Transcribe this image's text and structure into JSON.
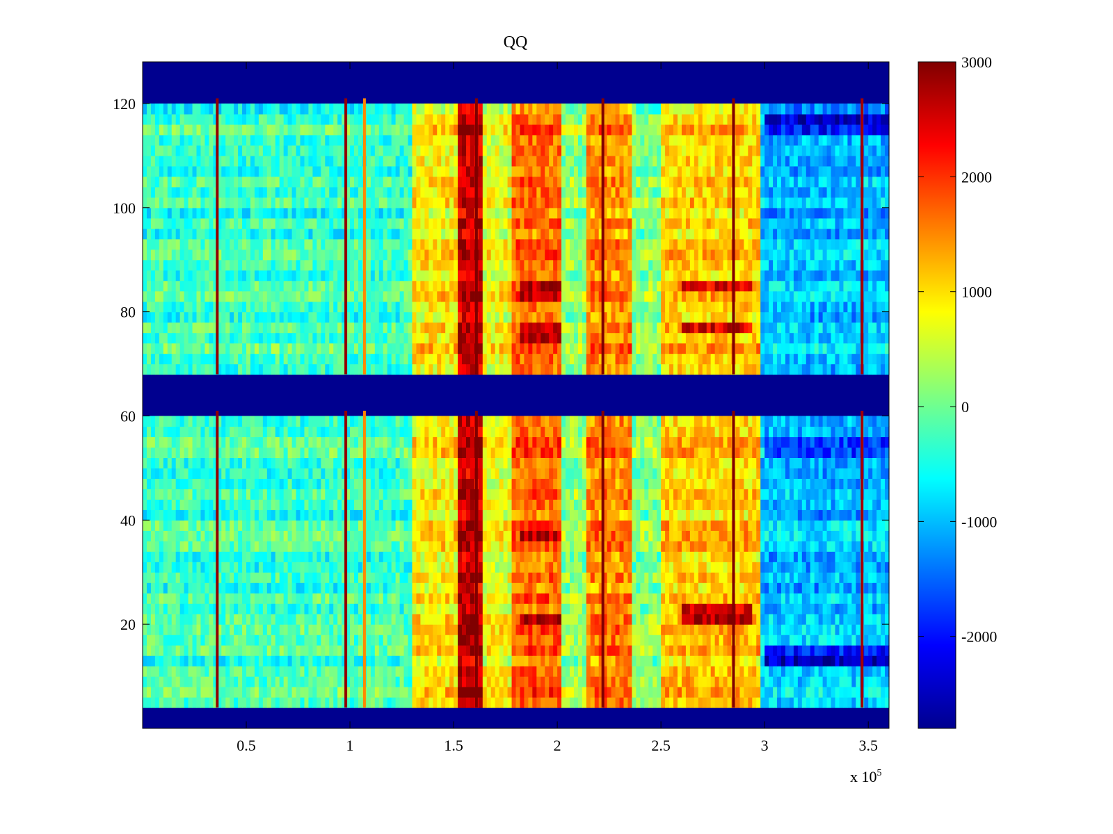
{
  "chart_data": {
    "type": "heatmap",
    "title": "QQ",
    "xlabel": "",
    "ylabel": "",
    "x_multiplier_label": "x 10",
    "x_multiplier_exponent": "5",
    "xlim": [
      0,
      3.6
    ],
    "ylim": [
      0,
      128
    ],
    "x_ticks": [
      {
        "value": 0.5,
        "label": "0.5"
      },
      {
        "value": 1,
        "label": "1"
      },
      {
        "value": 1.5,
        "label": "1.5"
      },
      {
        "value": 2,
        "label": "2"
      },
      {
        "value": 2.5,
        "label": "2.5"
      },
      {
        "value": 3,
        "label": "3"
      },
      {
        "value": 3.5,
        "label": "3.5"
      }
    ],
    "y_ticks": [
      {
        "value": 20,
        "label": "20"
      },
      {
        "value": 40,
        "label": "40"
      },
      {
        "value": 60,
        "label": "60"
      },
      {
        "value": 80,
        "label": "80"
      },
      {
        "value": 100,
        "label": "100"
      },
      {
        "value": 120,
        "label": "120"
      }
    ],
    "colorbar": {
      "colormap": "jet",
      "range": [
        -2800,
        3000
      ],
      "ticks": [
        {
          "value": 3000,
          "label": "3000"
        },
        {
          "value": 2000,
          "label": "2000"
        },
        {
          "value": 1000,
          "label": "1000"
        },
        {
          "value": 0,
          "label": "0"
        },
        {
          "value": -1000,
          "label": "-1000"
        },
        {
          "value": -2000,
          "label": "-2000"
        }
      ]
    },
    "masked_value": -2800,
    "masked_row_bands": [
      [
        0,
        4
      ],
      [
        61,
        68
      ],
      [
        121,
        128
      ]
    ],
    "baseline_value": -300,
    "column_bands": [
      {
        "x0": 1.3,
        "x1": 1.52,
        "value": 900
      },
      {
        "x0": 1.52,
        "x1": 1.65,
        "value": 2600
      },
      {
        "x0": 1.65,
        "x1": 1.78,
        "value": 700
      },
      {
        "x0": 1.78,
        "x1": 2.02,
        "value": 1700
      },
      {
        "x0": 2.02,
        "x1": 2.15,
        "value": 200
      },
      {
        "x0": 2.15,
        "x1": 2.36,
        "value": 1500
      },
      {
        "x0": 2.36,
        "x1": 2.5,
        "value": 100
      },
      {
        "x0": 2.5,
        "x1": 2.98,
        "value": 1100
      },
      {
        "x0": 2.98,
        "x1": 3.6,
        "value": -1000
      }
    ],
    "vertical_lines": [
      {
        "x": 0.36,
        "value": 2900
      },
      {
        "x": 0.98,
        "value": 2900
      },
      {
        "x": 1.07,
        "value": 1500
      },
      {
        "x": 1.61,
        "value": 3000
      },
      {
        "x": 2.22,
        "value": 3000
      },
      {
        "x": 2.85,
        "value": 3000
      },
      {
        "x": 3.47,
        "value": 2800
      }
    ],
    "hot_row_bands": [
      {
        "x0": 2.6,
        "x1": 2.95,
        "y0": 21,
        "y1": 24,
        "value": 2600
      },
      {
        "x0": 1.82,
        "x1": 2.02,
        "y0": 20,
        "y1": 23,
        "value": 2600
      },
      {
        "x0": 1.82,
        "x1": 2.02,
        "y0": 36,
        "y1": 38,
        "value": 2500
      },
      {
        "x0": 1.82,
        "x1": 2.02,
        "y0": 74,
        "y1": 78,
        "value": 2600
      },
      {
        "x0": 1.82,
        "x1": 2.02,
        "y0": 82,
        "y1": 86,
        "value": 2500
      },
      {
        "x0": 2.6,
        "x1": 2.95,
        "y0": 76,
        "y1": 78,
        "value": 2300
      },
      {
        "x0": 2.6,
        "x1": 2.95,
        "y0": 84,
        "y1": 86,
        "value": 2200
      },
      {
        "x0": 3.0,
        "x1": 3.6,
        "y0": 115,
        "y1": 118,
        "value": -2300
      },
      {
        "x0": 3.0,
        "x1": 3.6,
        "y0": 13,
        "y1": 16,
        "value": -2200
      },
      {
        "x0": 3.0,
        "x1": 3.6,
        "y0": 53,
        "y1": 56,
        "value": -2000
      }
    ]
  }
}
